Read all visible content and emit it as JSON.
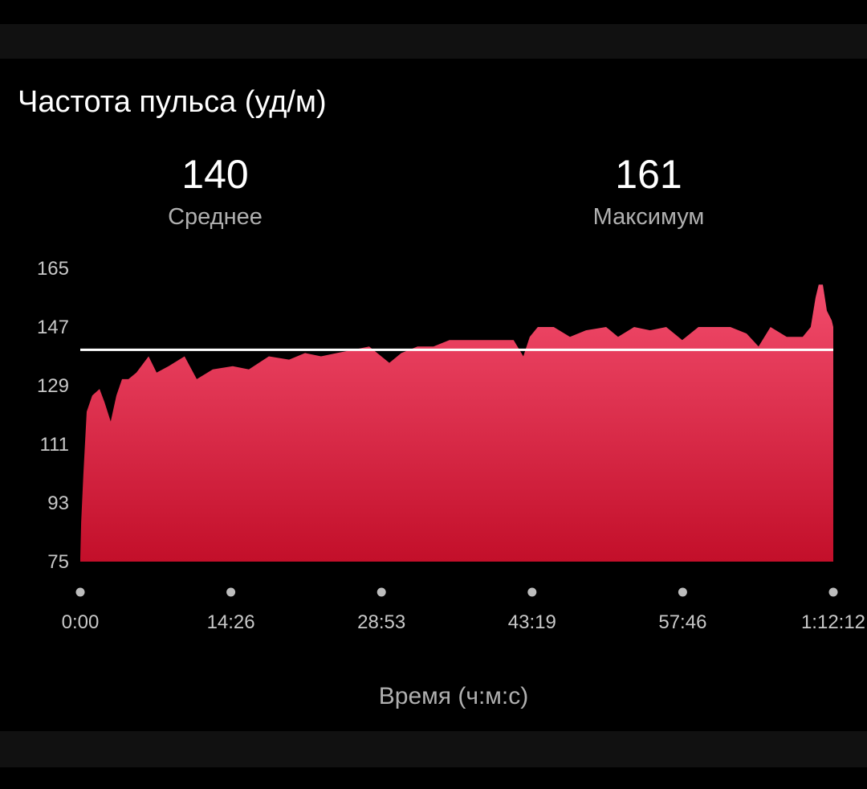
{
  "card": {
    "title": "Частота пульса (уд/м)",
    "stats": [
      {
        "value": "140",
        "label": "Среднее"
      },
      {
        "value": "161",
        "label": "Максимум"
      }
    ]
  },
  "chart_data": {
    "type": "area",
    "title": "Частота пульса (уд/м)",
    "xlabel": "Время (ч:м:с)",
    "ylabel": "",
    "ylim": [
      75,
      165
    ],
    "xlim": [
      "0:00",
      "1:12:12"
    ],
    "y_ticks": [
      "165",
      "147",
      "129",
      "111",
      "93",
      "75"
    ],
    "x_ticks": [
      "0:00",
      "14:26",
      "28:53",
      "43:19",
      "57:46",
      "1:12:12"
    ],
    "average_line": 140,
    "grid": false,
    "colors": {
      "fill_top": "#f24c6c",
      "fill_bottom": "#c30f2a",
      "average_line": "#ffffff"
    },
    "x": [
      "0:00",
      "0:05",
      "0:18",
      "0:37",
      "1:09",
      "1:51",
      "2:19",
      "2:55",
      "3:28",
      "4:00",
      "4:37",
      "5:23",
      "6:33",
      "7:19",
      "8:28",
      "10:00",
      "11:10",
      "12:42",
      "14:37",
      "16:10",
      "18:05",
      "20:01",
      "21:33",
      "23:05",
      "24:37",
      "26:10",
      "27:42",
      "29:38",
      "30:47",
      "32:20",
      "33:52",
      "35:24",
      "36:56",
      "38:29",
      "40:01",
      "41:33",
      "42:29",
      "43:06",
      "43:52",
      "45:24",
      "46:57",
      "48:29",
      "50:25",
      "51:34",
      "53:06",
      "54:38",
      "56:11",
      "57:43",
      "59:16",
      "1:00:48",
      "1:02:20",
      "1:03:53",
      "1:05:02",
      "1:06:11",
      "1:07:44",
      "1:09:16",
      "1:10:02",
      "1:10:30",
      "1:10:48",
      "1:11:12",
      "1:11:35",
      "1:12:03",
      "1:12:12"
    ],
    "y": [
      76,
      87,
      102,
      121,
      126,
      128,
      124,
      118,
      126,
      131,
      131,
      133,
      138,
      133,
      135,
      138,
      131,
      134,
      135,
      134,
      138,
      137,
      139,
      138,
      139,
      140,
      141,
      136,
      139,
      141,
      141,
      143,
      143,
      143,
      143,
      143,
      138,
      144,
      147,
      147,
      144,
      146,
      147,
      144,
      147,
      146,
      147,
      143,
      147,
      147,
      147,
      145,
      141,
      147,
      144,
      144,
      147,
      156,
      160,
      160,
      152,
      149,
      147
    ]
  }
}
